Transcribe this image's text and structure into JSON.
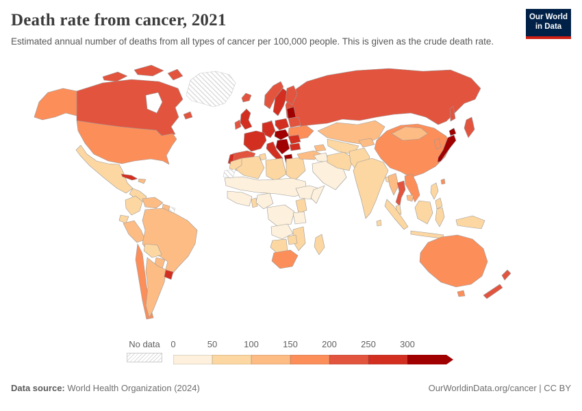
{
  "header": {
    "title": "Death rate from cancer, 2021",
    "subtitle": "Estimated annual number of deaths from all types of cancer per 100,000 people. This is given as the crude death rate.",
    "logo": {
      "line1": "Our World",
      "line2": "in Data",
      "bg_color": "#002147",
      "accent_color": "#cf2015",
      "text_color": "#ffffff"
    }
  },
  "legend": {
    "no_data_label": "No data",
    "ticks": [
      "0",
      "50",
      "100",
      "150",
      "200",
      "250",
      "300"
    ],
    "bin_ranges": [
      "0–50",
      "50–100",
      "100–150",
      "150–200",
      "200–250",
      "250–300",
      "300+"
    ],
    "colors": [
      "#fdf0dc",
      "#fdd7a1",
      "#fdbc84",
      "#fc8e5a",
      "#e2543e",
      "#d32f20",
      "#a00000"
    ],
    "tick_color": "#5f5f5f",
    "no_data_hatch_color": "#d9d9d9"
  },
  "map": {
    "border_color": "#999999",
    "no_data_border_color": "#c9c9c9",
    "ocean_color": "#ffffff",
    "countries": {
      "greenland": "no-data",
      "western-sahara": "no-data",
      "suriname": "no-data",
      "alaska": 3,
      "canada": 4,
      "canada-arctic-a": 4,
      "canada-arctic-b": 4,
      "canada-arctic-c": 4,
      "newfoundland": 4,
      "usa": 3,
      "mexico": 1,
      "central-america": 1,
      "cuba": 5,
      "hispaniola": 2,
      "colombia": 1,
      "venezuela": 2,
      "guyana": 2,
      "ecuador": 1,
      "peru": 2,
      "brazil": 2,
      "bolivia": 1,
      "paraguay": 2,
      "chile": 3,
      "argentina": 2,
      "uruguay": 5,
      "iceland": 4,
      "norway": 4,
      "sweden": 5,
      "finland": 4,
      "denmark": 5,
      "uk": 5,
      "ireland": 4,
      "germany": 5,
      "france": 5,
      "spain": 4,
      "portugal": 5,
      "italy": 5,
      "sicily": 5,
      "poland": 5,
      "baltics": 6,
      "belarus": 4,
      "ukraine": 3,
      "czech-hungary": 6,
      "balkans": 6,
      "romania": 5,
      "bulgaria": 5,
      "greece": 6,
      "russia": 4,
      "russia-kamchatka": 4,
      "russia-sakhalin": 4,
      "turkey": 2,
      "caucasus": 2,
      "iraq-syria": 0,
      "saudi-peninsula": 0,
      "iran": 1,
      "kazakhstan": 2,
      "uzbek-turkmen": 1,
      "kyrgyz-tajik": 2,
      "afghanistan-pakistan": 1,
      "india": 1,
      "sri-lanka": 1,
      "bangladesh": 1,
      "china": 3,
      "mongolia": 2,
      "korea": 3,
      "japan": 6,
      "japan-hokkaido": 6,
      "taiwan": 3,
      "myanmar": 2,
      "thailand": 4,
      "laos-vietnam": 3,
      "cambodia": 2,
      "malaysia": 1,
      "sumatra": 1,
      "java": 1,
      "borneo": 1,
      "sulawesi": 1,
      "new-guinea": 1,
      "philippines": 1,
      "philippines-south": 1,
      "australia": 3,
      "tasmania": 3,
      "nz-north": 4,
      "nz-south": 4,
      "morocco": 1,
      "algeria": 1,
      "tunisia": 1,
      "libya": 1,
      "egypt": 1,
      "sahel": 0,
      "west-africa": 0,
      "ghana": 1,
      "nigeria": 0,
      "ethiopia": 0,
      "somalia": 0,
      "drc": 0,
      "kenya": 1,
      "tanzania": 0,
      "angola-zambia": 0,
      "mozambique": 1,
      "zimbabwe": 1,
      "namibia-botswana": 1,
      "south-africa": 3,
      "madagascar": 1
    }
  },
  "footer": {
    "source_label": "Data source:",
    "source_text": " World Health Organization (2024)",
    "credit": "OurWorldinData.org/cancer | CC BY"
  },
  "chart_data": {
    "type": "heatmap",
    "title": "Death rate from cancer, 2021",
    "subtitle": "Estimated annual number of deaths from all types of cancer per 100,000 people. This is given as the crude death rate.",
    "unit": "deaths per 100,000 people",
    "legend_position": "bottom",
    "scale_bins": [
      0,
      50,
      100,
      150,
      200,
      250,
      300
    ],
    "scale_colors": [
      "#fdf0dc",
      "#fdd7a1",
      "#fdbc84",
      "#fc8e5a",
      "#e2543e",
      "#d32f20",
      "#a00000"
    ],
    "region_bins": {
      "Canada": "200-250",
      "United States": "150-200",
      "Mexico": "50-100",
      "Cuba": "250-300",
      "Greenland": "No data",
      "Brazil": "100-150",
      "Argentina": "100-150",
      "Chile": "150-200",
      "Uruguay": "250-300",
      "Peru": "100-150",
      "Colombia": "50-100",
      "Venezuela": "100-150",
      "United Kingdom": "250-300",
      "France": "250-300",
      "Germany": "250-300",
      "Spain": "200-250",
      "Italy": "250-300",
      "Poland": "250-300",
      "Hungary/Balkans": "300+",
      "Greece": "300+",
      "Baltic states": "300+",
      "Ukraine": "150-200",
      "Russia": "200-250",
      "Turkey": "100-150",
      "Kazakhstan": "100-150",
      "Middle East": "0-50",
      "North Africa": "50-100",
      "Sub-Saharan Africa": "0-50",
      "South Africa": "150-200",
      "India": "50-100",
      "China": "150-200",
      "Mongolia": "100-150",
      "Japan": "300+",
      "Korea": "150-200",
      "Thailand": "200-250",
      "Vietnam": "150-200",
      "Indonesia": "50-100",
      "Australia": "150-200",
      "New Zealand": "200-250"
    }
  }
}
